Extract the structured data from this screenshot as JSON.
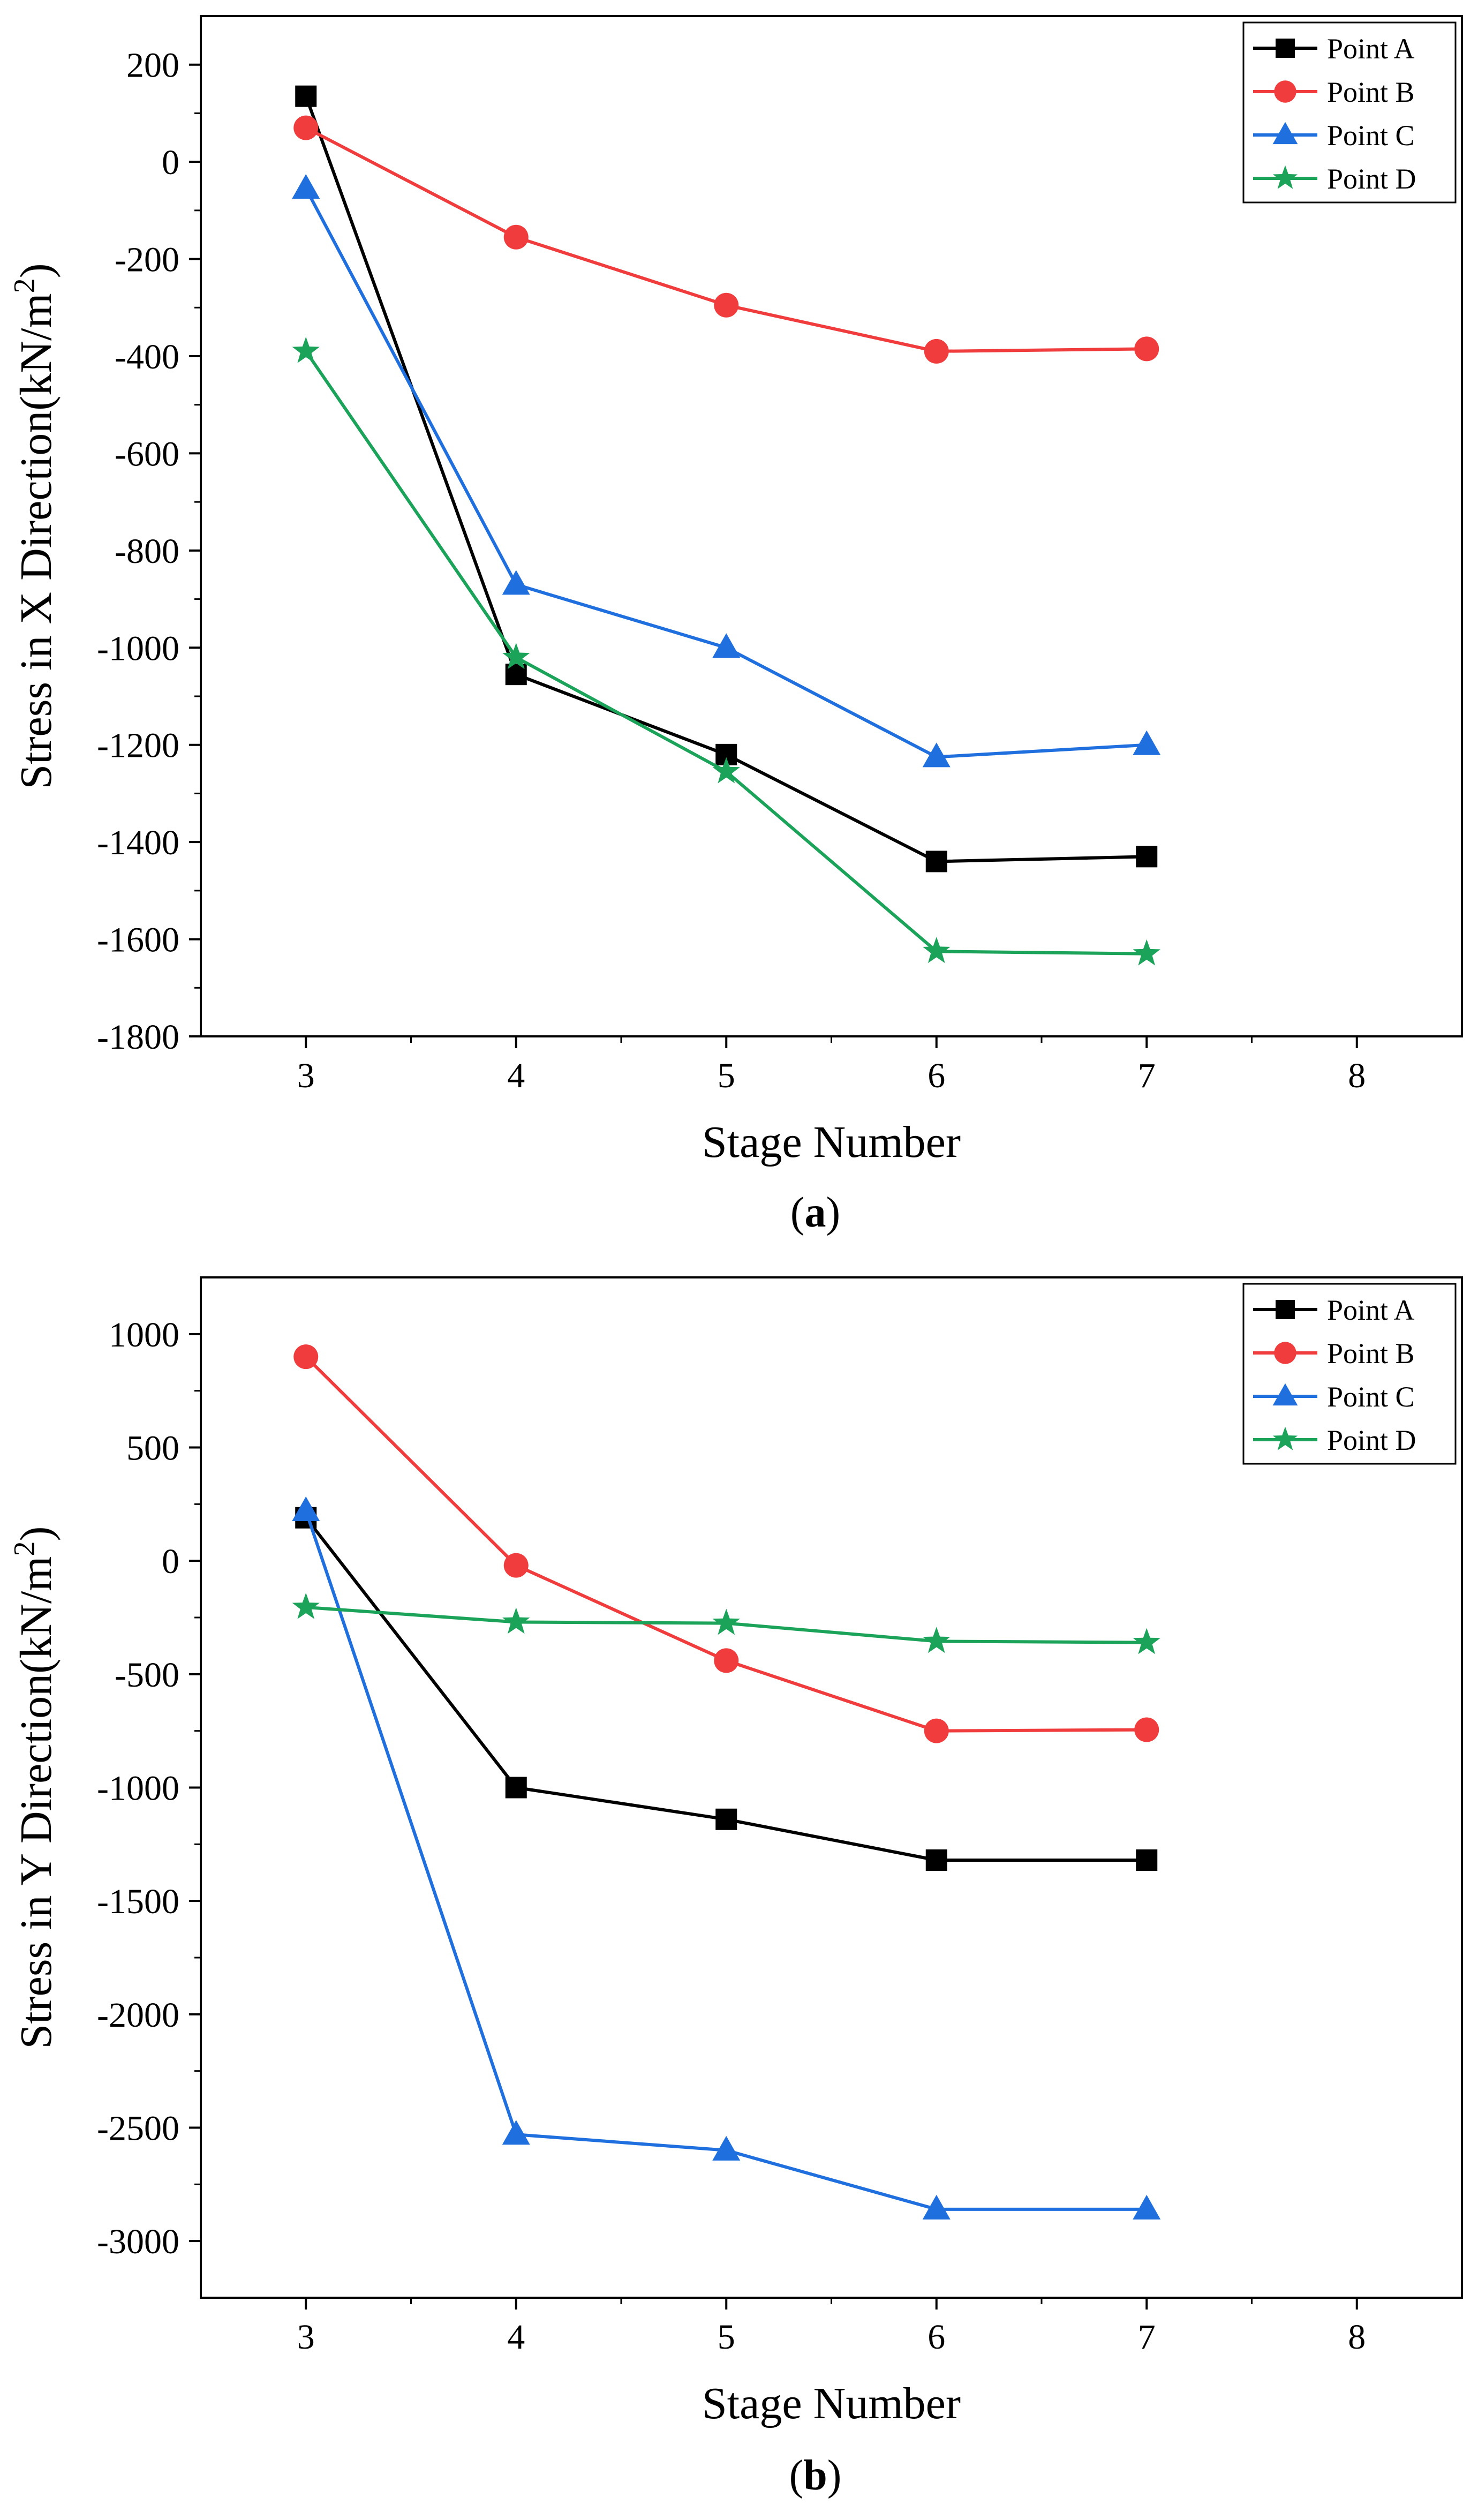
{
  "chart_data": [
    {
      "type": "line",
      "caption": "a",
      "xlabel": "Stage Number",
      "ylabel": "Stress in X Direction(kN/m",
      "ylabel_sup": "2",
      "ylabel_end": ")",
      "xlim": [
        2.5,
        8.5
      ],
      "ylim": [
        -1800,
        300
      ],
      "x_ticks": [
        3,
        4,
        5,
        6,
        7,
        8
      ],
      "x_tick_labels": [
        "3",
        "4",
        "5",
        "6",
        "7",
        "8"
      ],
      "y_ticks": [
        -1800,
        -1600,
        -1400,
        -1200,
        -1000,
        -800,
        -600,
        -400,
        -200,
        0,
        200
      ],
      "y_tick_labels": [
        "-1800",
        "-1600",
        "-1400",
        "-1200",
        "-1000",
        "-800",
        "-600",
        "-400",
        "-200",
        "0",
        "200"
      ],
      "x": [
        3,
        4,
        5,
        6,
        7
      ],
      "legend_position": "top-right",
      "series": [
        {
          "name": "Point A",
          "values": [
            135,
            -1055,
            -1220,
            -1440,
            -1430
          ],
          "color": "#000000",
          "marker": "square"
        },
        {
          "name": "Point B",
          "values": [
            70,
            -155,
            -295,
            -390,
            -385
          ],
          "color": "#f03c3c",
          "marker": "circle"
        },
        {
          "name": "Point C",
          "values": [
            -55,
            -870,
            -1000,
            -1225,
            -1200
          ],
          "color": "#1f6fdf",
          "marker": "triangle"
        },
        {
          "name": "Point D",
          "values": [
            -390,
            -1020,
            -1255,
            -1625,
            -1630
          ],
          "color": "#1ba35a",
          "marker": "star"
        }
      ]
    },
    {
      "type": "line",
      "caption": "b",
      "xlabel": "Stage Number",
      "ylabel": "Stress in Y Direction(kN/m",
      "ylabel_sup": "2",
      "ylabel_end": ")",
      "xlim": [
        2.5,
        8.5
      ],
      "ylim": [
        -3250,
        1250
      ],
      "x_ticks": [
        3,
        4,
        5,
        6,
        7,
        8
      ],
      "x_tick_labels": [
        "3",
        "4",
        "5",
        "6",
        "7",
        "8"
      ],
      "y_ticks": [
        -3000,
        -2500,
        -2000,
        -1500,
        -1000,
        -500,
        0,
        500,
        1000
      ],
      "y_tick_labels": [
        "-3000",
        "-2500",
        "-2000",
        "-1500",
        "-1000",
        "-500",
        "0",
        "500",
        "1000"
      ],
      "x": [
        3,
        4,
        5,
        6,
        7
      ],
      "legend_position": "top-right",
      "series": [
        {
          "name": "Point A",
          "values": [
            190,
            -1000,
            -1140,
            -1320,
            -1320
          ],
          "color": "#000000",
          "marker": "square"
        },
        {
          "name": "Point B",
          "values": [
            900,
            -20,
            -440,
            -750,
            -745
          ],
          "color": "#f03c3c",
          "marker": "circle"
        },
        {
          "name": "Point C",
          "values": [
            220,
            -2530,
            -2600,
            -2860,
            -2860
          ],
          "color": "#1f6fdf",
          "marker": "triangle"
        },
        {
          "name": "Point D",
          "values": [
            -205,
            -270,
            -275,
            -355,
            -360
          ],
          "color": "#1ba35a",
          "marker": "star"
        }
      ]
    }
  ]
}
